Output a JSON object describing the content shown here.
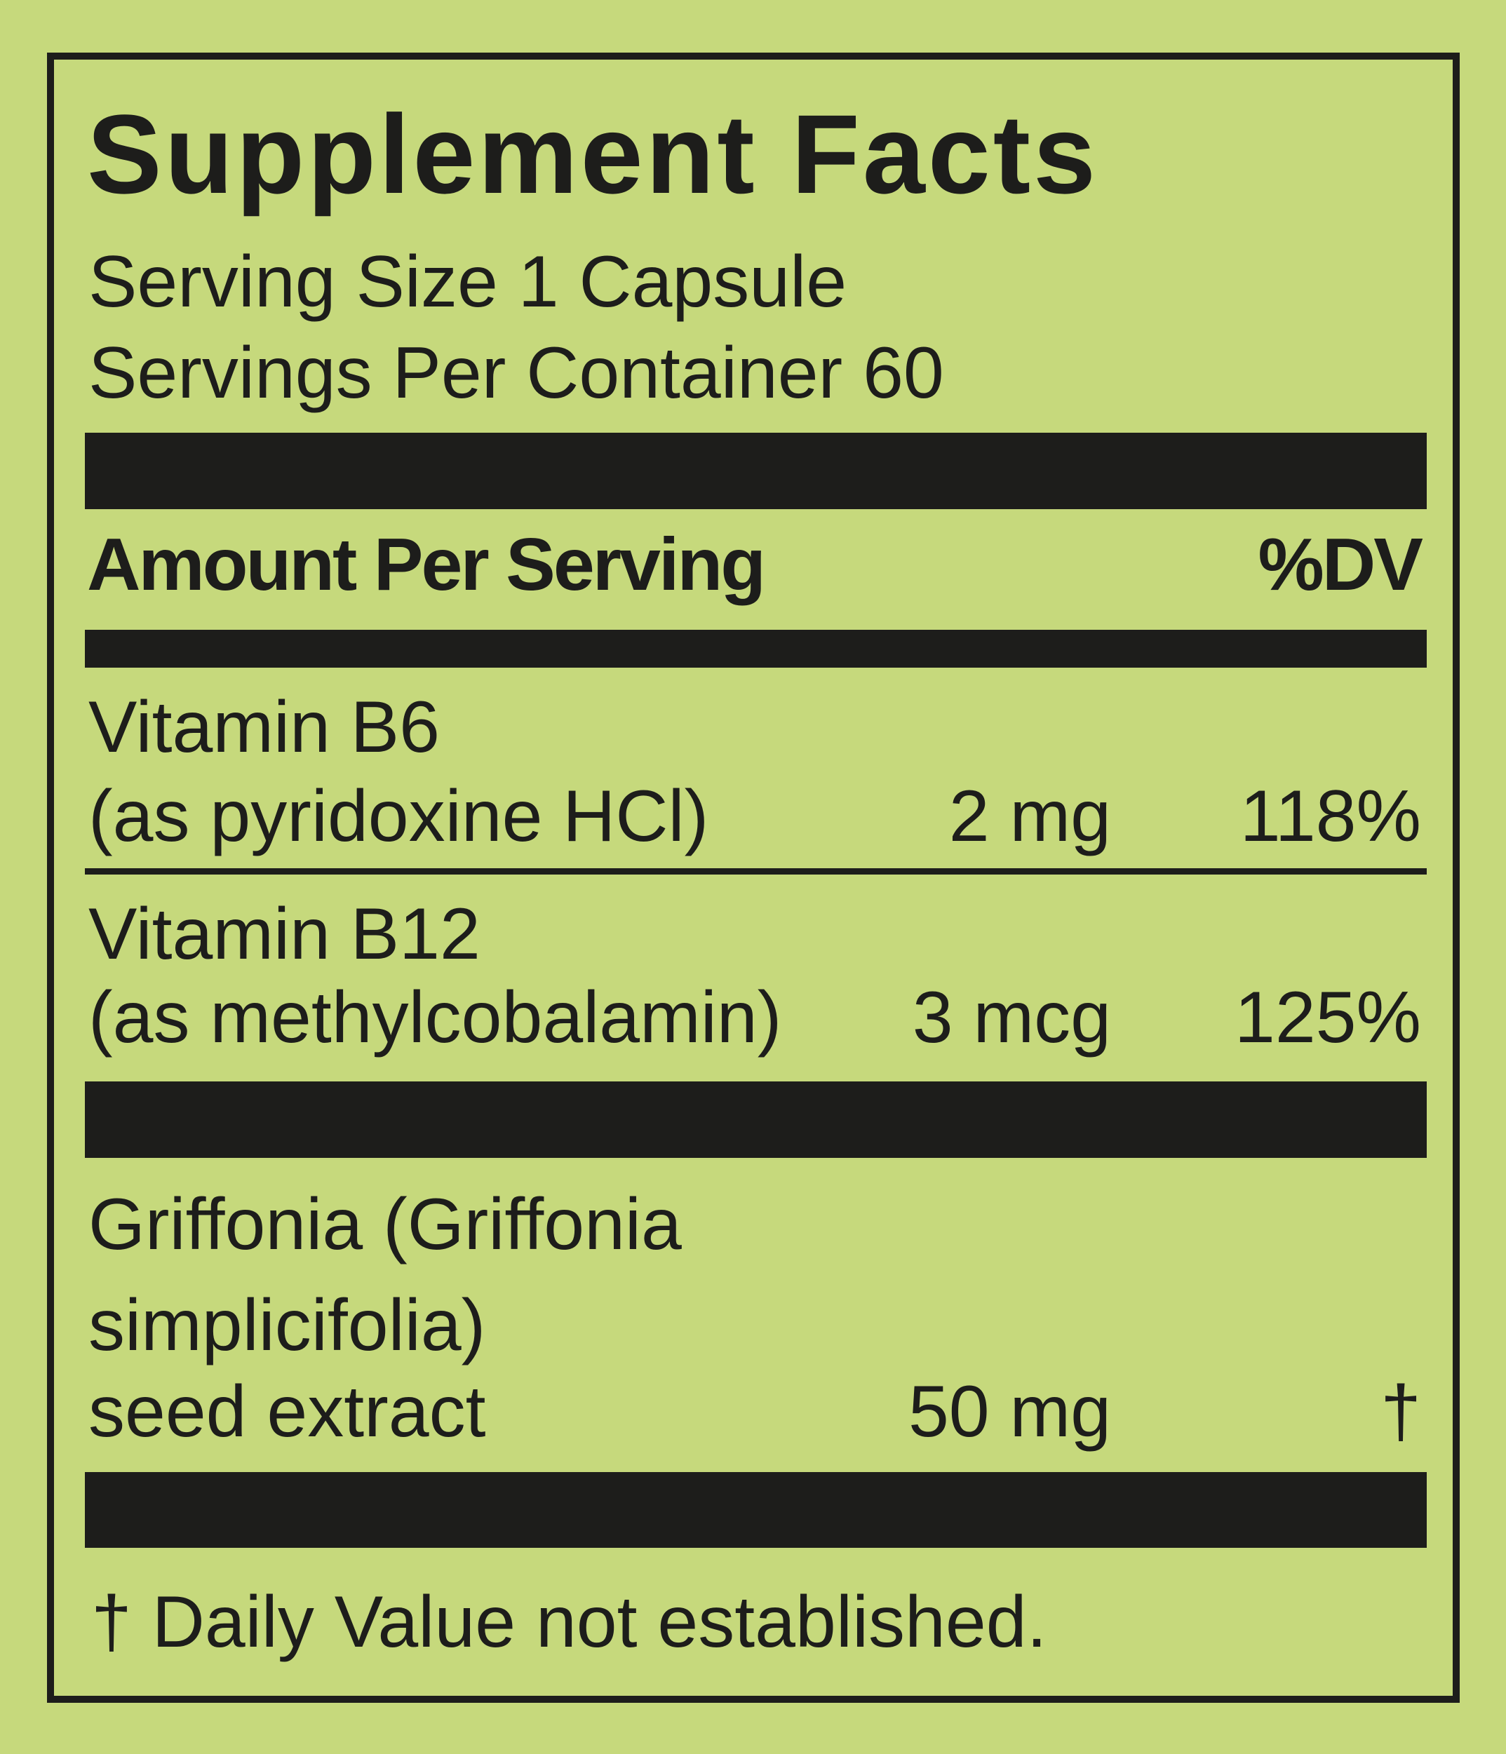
{
  "title": "Supplement Facts",
  "serving_size": "Serving Size 1 Capsule",
  "servings_per_container": "Servings Per Container 60",
  "header": {
    "amount": "Amount Per Serving",
    "dv": "%DV"
  },
  "nutrients": [
    {
      "name": "Vitamin B6",
      "form": "(as pyridoxine HCl)",
      "amount": "2 mg",
      "dv": "118%"
    },
    {
      "name": "Vitamin B12",
      "form": "(as methylcobalamin)",
      "amount": "3 mcg",
      "dv": "125%"
    }
  ],
  "other": {
    "lines": [
      "Griffonia (Griffonia",
      "simplicifolia)",
      "seed extract"
    ],
    "amount": "50 mg",
    "dv": "†"
  },
  "footnote": "† Daily Value not established.",
  "colors": {
    "background": "#c6d97c",
    "ink": "#1d1d1b"
  }
}
